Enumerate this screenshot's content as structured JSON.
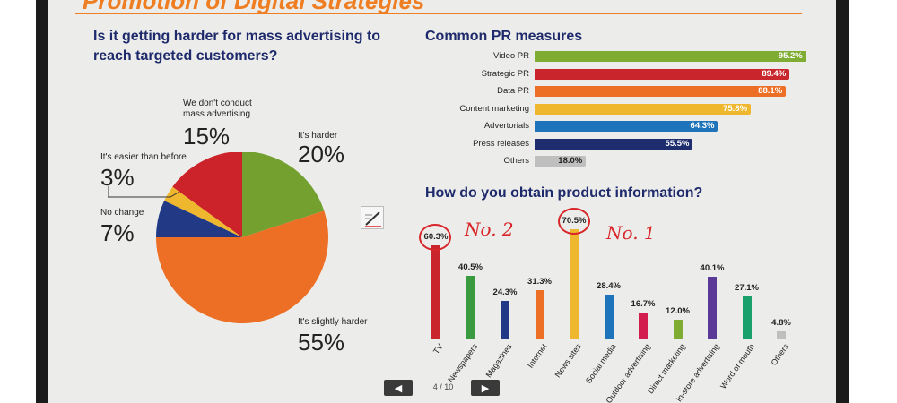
{
  "title": "Promotion of Digital Strategies",
  "pie": {
    "question": "Is it getting harder for mass advertising to reach targeted customers?",
    "slices": [
      {
        "label": "It's harder",
        "pct": "20%",
        "value": 20,
        "color": "#74a030"
      },
      {
        "label": "It's slightly harder",
        "pct": "55%",
        "value": 55,
        "color": "#ec6f25"
      },
      {
        "label": "No change",
        "pct": "7%",
        "value": 7,
        "color": "#223a86"
      },
      {
        "label": "It's easier than before",
        "pct": "3%",
        "value": 3,
        "color": "#efb72d"
      },
      {
        "label": "We don't conduct mass advertising",
        "pct": "15%",
        "value": 15,
        "color": "#cc2229"
      }
    ]
  },
  "pr": {
    "heading": "Common PR measures",
    "items": [
      {
        "label": "Video PR",
        "value": 95.2,
        "text": "95.2%",
        "color": "#7fac32"
      },
      {
        "label": "Strategic PR",
        "value": 89.4,
        "text": "89.4%",
        "color": "#c8262c"
      },
      {
        "label": "Data PR",
        "value": 88.1,
        "text": "88.1%",
        "color": "#ec6f25"
      },
      {
        "label": "Content marketing",
        "value": 75.8,
        "text": "75.8%",
        "color": "#efb72d"
      },
      {
        "label": "Advertorials",
        "value": 64.3,
        "text": "64.3%",
        "color": "#1e74bb"
      },
      {
        "label": "Press releases",
        "value": 55.5,
        "text": "55.5%",
        "color": "#1e2d6e"
      },
      {
        "label": "Others",
        "value": 18.0,
        "text": "18.0%",
        "color": "#bfbfbf"
      }
    ]
  },
  "info": {
    "heading": "How do you obtain product information?",
    "items": [
      {
        "label": "TV",
        "value": 60.3,
        "text": "60.3%",
        "color": "#c8262c"
      },
      {
        "label": "Newspapers",
        "value": 40.5,
        "text": "40.5%",
        "color": "#3a9a3f"
      },
      {
        "label": "Magazines",
        "value": 24.3,
        "text": "24.3%",
        "color": "#223a86"
      },
      {
        "label": "Internet",
        "value": 31.3,
        "text": "31.3%",
        "color": "#ec6f25"
      },
      {
        "label": "News sites",
        "value": 70.5,
        "text": "70.5%",
        "color": "#efb72d"
      },
      {
        "label": "Social media",
        "value": 28.4,
        "text": "28.4%",
        "color": "#1e74bb"
      },
      {
        "label": "Outdoor advertising",
        "value": 16.7,
        "text": "16.7%",
        "color": "#d41d4f"
      },
      {
        "label": "Direct marketing",
        "value": 12.0,
        "text": "12.0%",
        "color": "#7fac32"
      },
      {
        "label": "In-store advertising",
        "value": 40.1,
        "text": "40.1%",
        "color": "#5a3a96"
      },
      {
        "label": "Word of mouth",
        "value": 27.1,
        "text": "27.1%",
        "color": "#19a06b"
      },
      {
        "label": "Others",
        "value": 4.8,
        "text": "4.8%",
        "color": "#bfbfbf"
      }
    ],
    "annotations": {
      "no2": "No. 2",
      "no1": "No. 1"
    }
  },
  "nav": {
    "page": "4 / 10",
    "prev_icon": "arrow-left-icon",
    "next_icon": "arrow-right-icon"
  },
  "tools": {
    "edit_icon": "pen-edit-icon"
  }
}
